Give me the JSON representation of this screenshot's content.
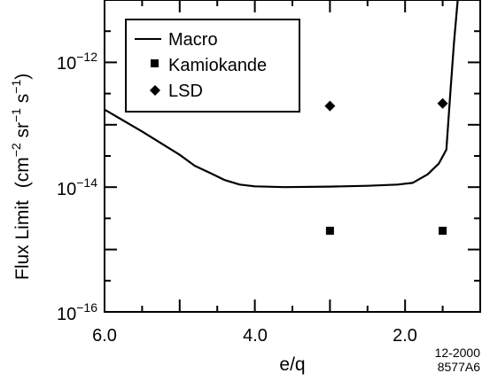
{
  "chart_data": {
    "type": "line",
    "xlabel": "e/q",
    "ylabel_prefix": "Flux Limit",
    "ylabel_units": {
      "open": "(cm",
      "exp1": "−2",
      "mid1": " sr",
      "exp2": "−1",
      "mid2": " s",
      "exp3": "−1",
      "close": ")"
    },
    "x_axis": {
      "reversed": true,
      "range": [
        1.0,
        6.0
      ],
      "major_ticks": [
        6.0,
        5.0,
        4.0,
        3.0,
        2.0,
        1.0
      ],
      "labeled_ticks": [
        {
          "value": 6.0,
          "label": "6.0"
        },
        {
          "value": 4.0,
          "label": "4.0"
        },
        {
          "value": 2.0,
          "label": "2.0"
        }
      ]
    },
    "y_axis": {
      "scale": "log",
      "range": [
        1e-16,
        1e-11
      ],
      "major_ticks": [
        1e-16,
        1e-15,
        1e-14,
        1e-13,
        1e-12,
        1e-11
      ],
      "labeled_ticks": [
        {
          "value": 1e-12,
          "base": "10",
          "exp": "−12"
        },
        {
          "value": 1e-14,
          "base": "10",
          "exp": "−14"
        },
        {
          "value": 1e-16,
          "base": "10",
          "exp": "−16"
        }
      ]
    },
    "grid": false,
    "legend_position": "top-left",
    "series": [
      {
        "name": "Macro",
        "kind": "line",
        "color": "#000000",
        "points": [
          [
            6.0,
            1.75e-13
          ],
          [
            5.5,
            7.8e-14
          ],
          [
            5.0,
            3.3e-14
          ],
          [
            4.8,
            2.2e-14
          ],
          [
            4.6,
            1.7e-14
          ],
          [
            4.4,
            1.3e-14
          ],
          [
            4.2,
            1.1e-14
          ],
          [
            4.0,
            1.03e-14
          ],
          [
            3.6,
            1e-14
          ],
          [
            3.0,
            1.02e-14
          ],
          [
            2.5,
            1.05e-14
          ],
          [
            2.1,
            1.1e-14
          ],
          [
            1.9,
            1.17e-14
          ],
          [
            1.7,
            1.6e-14
          ],
          [
            1.55,
            2.4e-14
          ],
          [
            1.45,
            4e-14
          ],
          [
            1.4,
            3e-13
          ],
          [
            1.35,
            2e-12
          ],
          [
            1.3,
            1e-11
          ]
        ]
      },
      {
        "name": "Kamiokande",
        "kind": "marker",
        "marker": "square",
        "color": "#000000",
        "points": [
          [
            3.0,
            2e-15
          ],
          [
            1.5,
            2e-15
          ]
        ]
      },
      {
        "name": "LSD",
        "kind": "marker",
        "marker": "diamond",
        "color": "#000000",
        "points": [
          [
            3.0,
            2e-13
          ],
          [
            1.5,
            2.2e-13
          ]
        ]
      }
    ],
    "annotations": [
      "12-2000",
      "8577A6"
    ]
  }
}
